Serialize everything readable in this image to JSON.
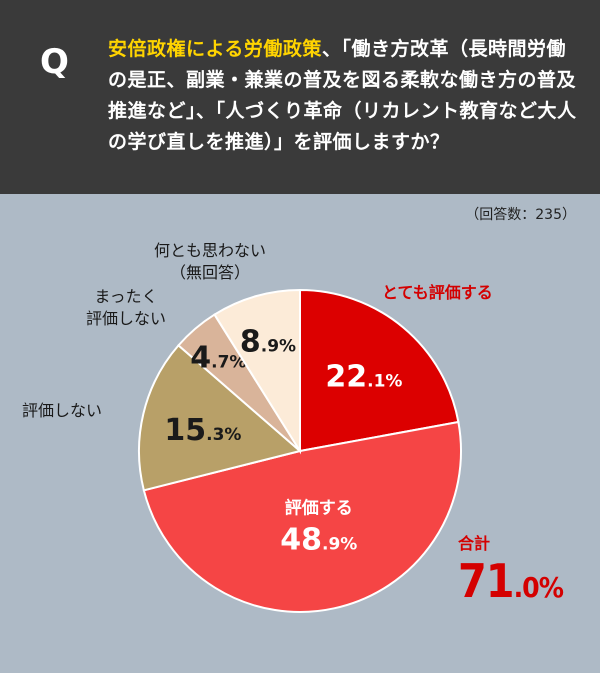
{
  "question": {
    "mark": "Q",
    "highlight": "安倍政権による労働政策",
    "text": "、「働き方改革（長時間労働の是正、副業・兼業の普及を図る柔軟な働き方の普及推進など」、「人づくり革命（リカレント教育など大人の学び直しを推進）」を評価しますか？"
  },
  "respondents": "（回答数：235）",
  "total": {
    "label": "合計",
    "value": "71",
    "decimal": ".0%"
  },
  "colors": {
    "very_positive": "#dc0000",
    "positive": "#f54545",
    "negative": "#b8a068",
    "very_negative": "#d9b49a",
    "no_answer": "#fcebd8"
  },
  "chart_data": {
    "type": "pie",
    "title": "",
    "slices": [
      {
        "label": "とても評価する",
        "value": 22.1,
        "text_int": "22",
        "text_dec": ".1%",
        "color": "#dc0000"
      },
      {
        "label": "評価する",
        "value": 48.9,
        "text_int": "48",
        "text_dec": ".9%",
        "color": "#f54545"
      },
      {
        "label": "評価しない",
        "value": 15.3,
        "text_int": "15",
        "text_dec": ".3%",
        "color": "#b8a068"
      },
      {
        "label": "まったく評価しない",
        "value": 4.7,
        "text_int": "4",
        "text_dec": ".7%",
        "color": "#d9b49a"
      },
      {
        "label": "何とも思わない（無回答）",
        "value": 8.9,
        "text_int": "8",
        "text_dec": ".9%",
        "color": "#fcebd8"
      }
    ]
  },
  "labels": {
    "very_positive": "とても評価する",
    "positive": "評価する",
    "negative": "評価しない",
    "very_negative_1": "まったく",
    "very_negative_2": "評価しない",
    "no_answer_1": "何とも思わない",
    "no_answer_2": "（無回答）"
  }
}
